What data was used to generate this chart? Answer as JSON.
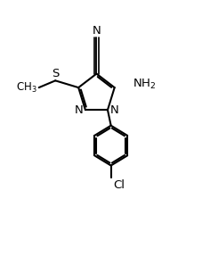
{
  "bg_color": "#ffffff",
  "line_color": "#000000",
  "line_width": 1.5,
  "font_size": 8.5,
  "figsize": [
    2.28,
    2.88
  ],
  "dpi": 100,
  "xlim": [
    -0.15,
    1.05
  ],
  "ylim": [
    -0.35,
    1.1
  ]
}
